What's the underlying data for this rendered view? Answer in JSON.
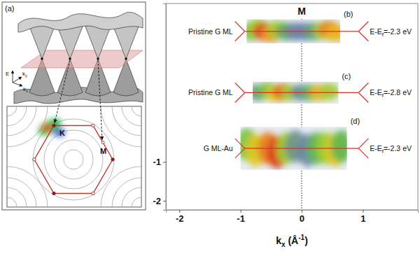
{
  "chart_data": {
    "type": "arpes_map",
    "xlabel": {
      "main": "k",
      "sub": "x",
      "rest": " (Å",
      "sup": "-1",
      "end": ")"
    },
    "xlim": [
      -2.22,
      1.9
    ],
    "ylim": [
      -2.23,
      3.07
    ],
    "xticks": [
      -2,
      -1,
      0,
      1
    ],
    "yticks": [
      -1,
      -2
    ],
    "intensity_lim": [
      0,
      1
    ],
    "symmetry_point": {
      "label": "M",
      "kx": 0
    },
    "bz_boundary_kx": [
      -0.93,
      0.93
    ],
    "panels": [
      {
        "letter": "(b)",
        "sample": "Pristine G ML",
        "energy_label": {
          "main": "E-E",
          "sub": "f",
          "rest": "=-2.3 eV"
        },
        "kx_range": [
          -0.9,
          0.63
        ],
        "ky_range": [
          2.05,
          2.66
        ],
        "spots": [
          {
            "kx": -0.82,
            "ky": 2.35,
            "intensity": 0.55
          },
          {
            "kx": -0.72,
            "ky": 2.45,
            "intensity": 0.6
          },
          {
            "kx": -0.62,
            "ky": 2.35,
            "intensity": 0.95
          },
          {
            "kx": -0.5,
            "ky": 2.3,
            "intensity": 0.8
          },
          {
            "kx": -0.4,
            "ky": 2.4,
            "intensity": 0.6
          },
          {
            "kx": -0.25,
            "ky": 2.35,
            "intensity": 0.45
          },
          {
            "kx": -0.1,
            "ky": 2.35,
            "intensity": 0.3
          },
          {
            "kx": 0.05,
            "ky": 2.35,
            "intensity": 0.28
          },
          {
            "kx": 0.2,
            "ky": 2.35,
            "intensity": 0.4
          },
          {
            "kx": 0.35,
            "ky": 2.37,
            "intensity": 0.6
          },
          {
            "kx": 0.45,
            "ky": 2.4,
            "intensity": 0.85
          },
          {
            "kx": 0.55,
            "ky": 2.32,
            "intensity": 0.75
          }
        ]
      },
      {
        "letter": "(c)",
        "sample": "Pristine G ML",
        "energy_label": {
          "main": "E-E",
          "sub": "f",
          "rest": "=-2.8 eV"
        },
        "kx_range": [
          -0.8,
          0.6
        ],
        "ky_range": [
          0.5,
          1.06
        ],
        "spots": [
          {
            "kx": -0.72,
            "ky": 0.78,
            "intensity": 0.4
          },
          {
            "kx": -0.55,
            "ky": 0.83,
            "intensity": 0.55
          },
          {
            "kx": -0.42,
            "ky": 0.75,
            "intensity": 0.7
          },
          {
            "kx": -0.3,
            "ky": 0.8,
            "intensity": 0.9
          },
          {
            "kx": -0.18,
            "ky": 0.78,
            "intensity": 0.6
          },
          {
            "kx": 0.0,
            "ky": 0.78,
            "intensity": 0.3
          },
          {
            "kx": 0.15,
            "ky": 0.78,
            "intensity": 0.5
          },
          {
            "kx": 0.3,
            "ky": 0.78,
            "intensity": 0.75
          },
          {
            "kx": 0.45,
            "ky": 0.81,
            "intensity": 0.6
          }
        ]
      },
      {
        "letter": "(d)",
        "sample": "G ML-Au",
        "energy_label": {
          "main": "E-E",
          "sub": "f",
          "rest": "=-2.3 eV"
        },
        "kx_range": [
          -1.0,
          0.74
        ],
        "ky_range": [
          -1.2,
          -0.1
        ],
        "spots": [
          {
            "kx": -0.9,
            "ky": -0.55,
            "intensity": 0.55
          },
          {
            "kx": -0.75,
            "ky": -0.7,
            "intensity": 0.7
          },
          {
            "kx": -0.55,
            "ky": -0.65,
            "intensity": 0.85
          },
          {
            "kx": -0.4,
            "ky": -0.75,
            "intensity": 0.95
          },
          {
            "kx": -0.25,
            "ky": -0.65,
            "intensity": 0.6
          },
          {
            "kx": -0.1,
            "ky": -0.6,
            "intensity": 0.35
          },
          {
            "kx": 0.1,
            "ky": -0.7,
            "intensity": 0.3
          },
          {
            "kx": 0.25,
            "ky": -0.65,
            "intensity": 0.5
          },
          {
            "kx": 0.4,
            "ky": -0.65,
            "intensity": 0.6
          },
          {
            "kx": 0.55,
            "ky": -0.7,
            "intensity": 0.7
          },
          {
            "kx": 0.65,
            "ky": -0.6,
            "intensity": 0.5
          }
        ]
      }
    ]
  },
  "panel_a": {
    "letter": "(a)",
    "axis_labels": {
      "e": "E",
      "ky": {
        "main": "k",
        "sub": "y"
      },
      "kx": {
        "main": "k",
        "sub": "x"
      }
    },
    "points": {
      "k": "K",
      "m": "M"
    }
  }
}
